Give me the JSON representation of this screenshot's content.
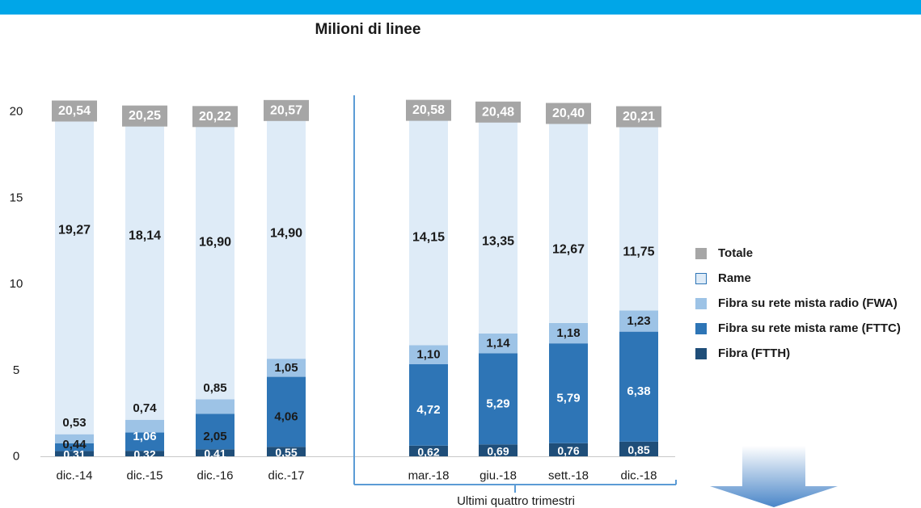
{
  "header": {
    "bar_color": "#00a6e8"
  },
  "chart_data": {
    "type": "bar",
    "stacked": true,
    "title": "Milioni di linee",
    "categories": [
      "dic.-14",
      "dic.-15",
      "dic.-16",
      "dic.-17",
      "mar.-18",
      "giu.-18",
      "sett.-18",
      "dic.-18"
    ],
    "series": [
      {
        "name": "Fibra (FTTH)",
        "color": "#1f4e79",
        "values": [
          0.31,
          0.32,
          0.41,
          0.55,
          0.62,
          0.69,
          0.76,
          0.85
        ]
      },
      {
        "name": "Fibra su rete mista rame (FTTC)",
        "color": "#2e75b6",
        "values": [
          0.44,
          1.06,
          2.05,
          4.06,
          4.72,
          5.29,
          5.79,
          6.38
        ]
      },
      {
        "name": "Fibra su rete mista radio (FWA)",
        "color": "#9dc3e6",
        "values": [
          0.53,
          0.74,
          0.85,
          1.05,
          1.1,
          1.14,
          1.18,
          1.23
        ]
      },
      {
        "name": "Rame",
        "color": "#deebf7",
        "values": [
          19.27,
          18.14,
          16.9,
          14.9,
          14.15,
          13.35,
          12.67,
          11.75
        ]
      }
    ],
    "data_labels": [
      [
        "0,31",
        "0,32",
        "0,41",
        "0,55",
        "0,62",
        "0,69",
        "0,76",
        "0,85"
      ],
      [
        "0,44",
        "1,06",
        "2,05",
        "4,06",
        "4,72",
        "5,29",
        "5,79",
        "6,38"
      ],
      [
        "0,53",
        "0,74",
        "0,85",
        "1,05",
        "1,10",
        "1,14",
        "1,18",
        "1,23"
      ],
      [
        "19,27",
        "18,14",
        "16,90",
        "14,90",
        "14,15",
        "13,35",
        "12,67",
        "11,75"
      ]
    ],
    "totals": {
      "name": "Totale",
      "color": "#a6a6a6",
      "values": [
        20.54,
        20.25,
        20.22,
        20.57,
        20.58,
        20.48,
        20.4,
        20.21
      ],
      "labels": [
        "20,54",
        "20,25",
        "20,22",
        "20,57",
        "20,58",
        "20,48",
        "20,40",
        "20,21"
      ]
    },
    "yticks": [
      0,
      5,
      10,
      15,
      20
    ],
    "ylim": [
      0,
      21.5
    ],
    "grid": false,
    "legend_position": "right",
    "group_bracket": {
      "label": "Ultimi quattro trimestri",
      "categories": [
        "mar.-18",
        "giu.-18",
        "sett.-18",
        "dic.-18"
      ]
    }
  },
  "legend": [
    {
      "label": "Totale",
      "color": "#a6a6a6",
      "outline": false
    },
    {
      "label": "Rame",
      "color": "#deebf7",
      "outline": true
    },
    {
      "label": "Fibra su rete mista radio (FWA)",
      "color": "#9dc3e6",
      "outline": false
    },
    {
      "label": "Fibra su rete mista rame (FTTC)",
      "color": "#2e75b6",
      "outline": false
    },
    {
      "label": "Fibra (FTTH)",
      "color": "#1f4e79",
      "outline": false
    }
  ],
  "arrow": {
    "color_top": "#ffffff",
    "color_bottom": "#4a86c8"
  }
}
